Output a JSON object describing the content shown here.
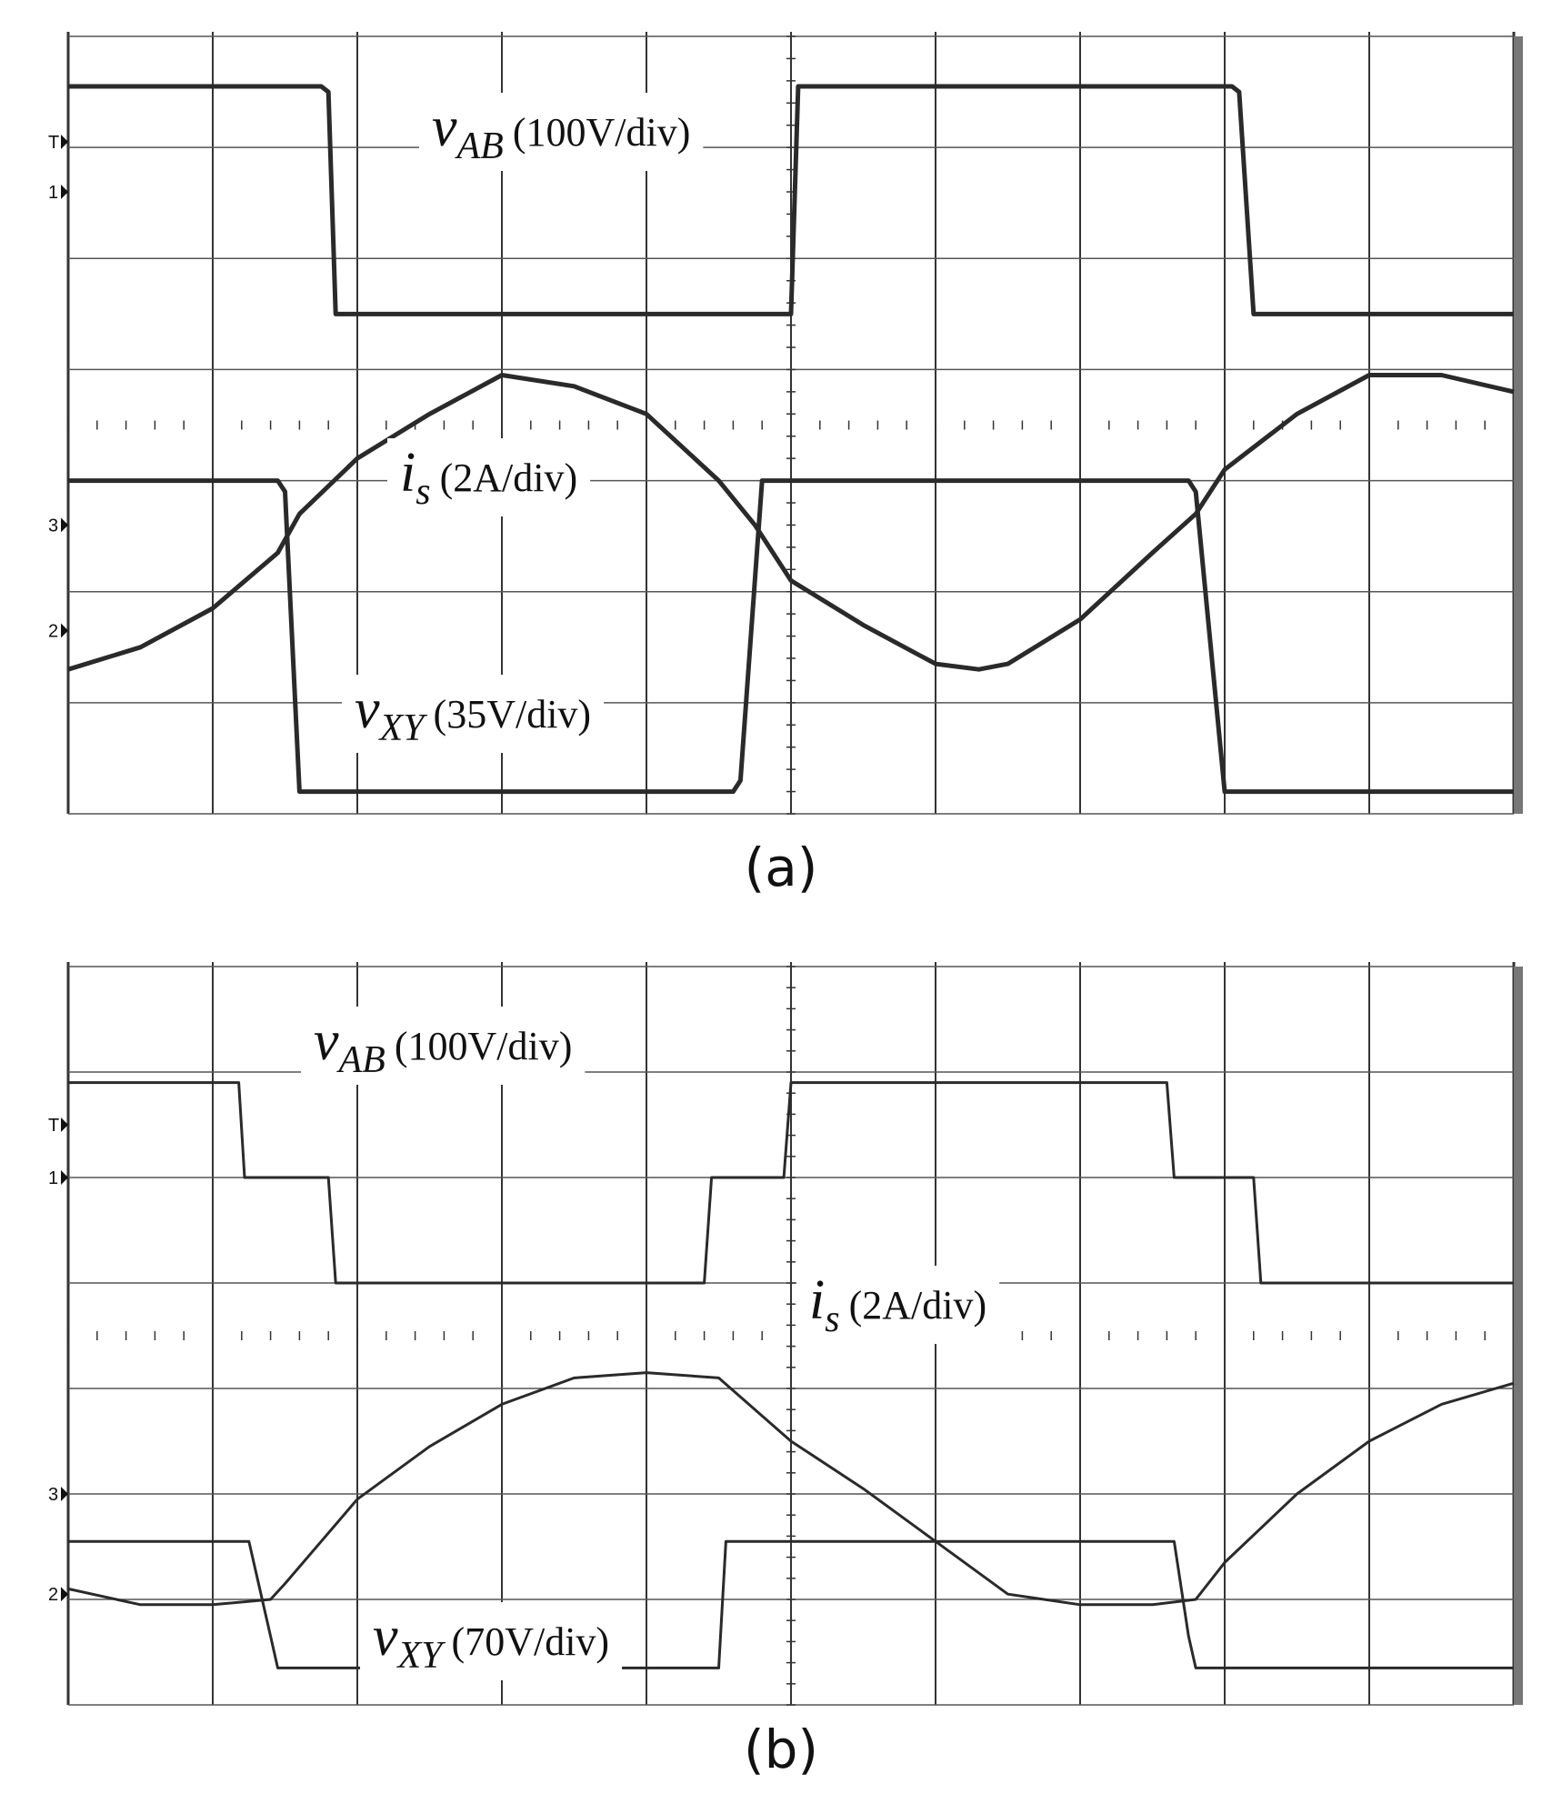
{
  "figure": {
    "panel_a_label": "(a)",
    "panel_b_label": "(b)"
  },
  "chart_data": [
    {
      "type": "line",
      "panel": "(a)",
      "grid": true,
      "divisions": {
        "x": 10,
        "y": 7
      },
      "channel_markers": [
        {
          "label": "T",
          "level_div": 6.05
        },
        {
          "label": "1",
          "level_div": 5.6
        },
        {
          "label": "3",
          "level_div": 2.6
        },
        {
          "label": "2",
          "level_div": 1.65
        }
      ],
      "annotations": [
        {
          "var": "v",
          "sub": "AB",
          "scale": "(100V/div)"
        },
        {
          "var": "i",
          "sub": "s",
          "scale": "(2A/div)"
        },
        {
          "var": "v",
          "sub": "XY",
          "scale": "(35V/div)"
        }
      ],
      "series": [
        {
          "name": "v_AB",
          "units_per_div": "100V/div",
          "x": [
            0,
            1.75,
            1.8,
            1.85,
            4.9,
            5.0,
            5.05,
            8.05,
            8.1,
            8.2,
            10.0
          ],
          "y": [
            6.55,
            6.55,
            6.5,
            4.5,
            4.5,
            4.5,
            6.55,
            6.55,
            6.5,
            4.5,
            4.5
          ]
        },
        {
          "name": "v_XY",
          "units_per_div": "35V/div",
          "x": [
            0,
            1.45,
            1.5,
            1.6,
            4.6,
            4.65,
            4.8,
            7.75,
            7.8,
            8.0,
            10.0
          ],
          "y": [
            3.0,
            3.0,
            2.9,
            0.2,
            0.2,
            0.3,
            3.0,
            3.0,
            2.9,
            0.2,
            0.2
          ]
        },
        {
          "name": "i_s",
          "units_per_div": "2A/div",
          "x": [
            0,
            0.5,
            1.0,
            1.45,
            1.6,
            2.0,
            2.5,
            3.0,
            3.5,
            4.0,
            4.5,
            4.75,
            5.0,
            5.5,
            6.0,
            6.3,
            6.5,
            7.0,
            7.5,
            7.8,
            8.0,
            8.5,
            9.0,
            9.5,
            10.0
          ],
          "y": [
            1.3,
            1.5,
            1.85,
            2.35,
            2.7,
            3.2,
            3.6,
            3.95,
            3.85,
            3.6,
            3.0,
            2.6,
            2.1,
            1.7,
            1.35,
            1.3,
            1.35,
            1.75,
            2.35,
            2.7,
            3.1,
            3.6,
            3.95,
            3.95,
            3.8
          ]
        }
      ]
    },
    {
      "type": "line",
      "panel": "(b)",
      "grid": true,
      "divisions": {
        "x": 10,
        "y": 7
      },
      "channel_markers": [
        {
          "label": "T",
          "level_div": 5.5
        },
        {
          "label": "1",
          "level_div": 5.0
        },
        {
          "label": "3",
          "level_div": 2.0
        },
        {
          "label": "2",
          "level_div": 1.05
        }
      ],
      "annotations": [
        {
          "var": "v",
          "sub": "AB",
          "scale": "(100V/div)"
        },
        {
          "var": "i",
          "sub": "s",
          "scale": "(2A/div)"
        },
        {
          "var": "v",
          "sub": "XY",
          "scale": "(70V/div)"
        }
      ],
      "series": [
        {
          "name": "v_AB",
          "units_per_div": "100V/div",
          "x": [
            0,
            1.18,
            1.22,
            1.8,
            1.85,
            4.4,
            4.45,
            4.95,
            5.0,
            7.6,
            7.65,
            8.2,
            8.25,
            10.0
          ],
          "y": [
            5.9,
            5.9,
            5.0,
            5.0,
            4.0,
            4.0,
            5.0,
            5.0,
            5.9,
            5.9,
            5.0,
            5.0,
            4.0,
            4.0
          ]
        },
        {
          "name": "v_XY",
          "units_per_div": "70V/div",
          "x": [
            0,
            1.25,
            1.4,
            1.45,
            4.5,
            4.55,
            4.6,
            7.65,
            7.75,
            7.8,
            10.0
          ],
          "y": [
            1.55,
            1.55,
            0.65,
            0.35,
            0.35,
            1.55,
            1.55,
            1.55,
            0.65,
            0.35,
            0.35
          ]
        },
        {
          "name": "i_s",
          "units_per_div": "2A/div",
          "x": [
            0,
            0.5,
            1.0,
            1.4,
            1.5,
            1.75,
            2.0,
            2.5,
            3.0,
            3.5,
            4.0,
            4.5,
            5.0,
            5.5,
            6.0,
            6.5,
            7.0,
            7.5,
            7.8,
            8.0,
            8.5,
            9.0,
            9.5,
            10.0
          ],
          "y": [
            1.1,
            0.95,
            0.95,
            1.0,
            1.15,
            1.55,
            1.95,
            2.45,
            2.85,
            3.1,
            3.15,
            3.1,
            2.5,
            2.05,
            1.55,
            1.05,
            0.95,
            0.95,
            1.0,
            1.35,
            2.0,
            2.5,
            2.85,
            3.05
          ]
        }
      ]
    }
  ]
}
